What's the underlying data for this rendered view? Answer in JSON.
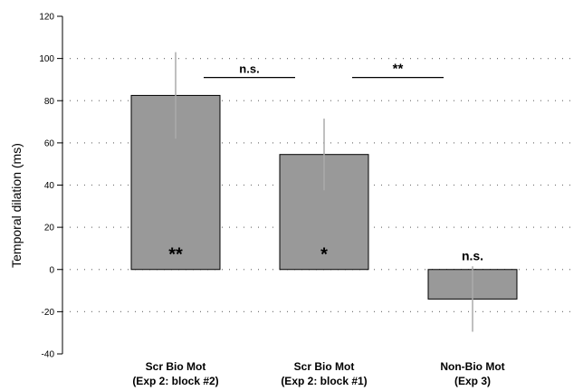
{
  "chart_data": {
    "type": "bar",
    "ylabel": "Temporal dilation (ms)",
    "ylim": [
      -40,
      120
    ],
    "yticks": [
      -40,
      -20,
      0,
      20,
      40,
      60,
      80,
      100,
      120
    ],
    "grid": "dotted-horizontal",
    "categories": [
      [
        "Scr Bio Mot",
        "(Exp 2: block #2)"
      ],
      [
        "Scr Bio Mot",
        "(Exp 2: block #1)"
      ],
      [
        "Non-Bio Mot",
        "(Exp 3)"
      ]
    ],
    "values": [
      82.5,
      54.5,
      -14
    ],
    "error": [
      20.5,
      17,
      15.5
    ],
    "bar_labels": [
      "**",
      "*",
      "n.s."
    ],
    "comparisons": [
      {
        "from": 0,
        "to": 1,
        "label": "n.s.",
        "y": 91
      },
      {
        "from": 1,
        "to": 2,
        "label": "**",
        "y": 91
      }
    ],
    "colors": {
      "bar": "#999999",
      "error": "#aaaaaa",
      "axis": "#000000"
    }
  }
}
